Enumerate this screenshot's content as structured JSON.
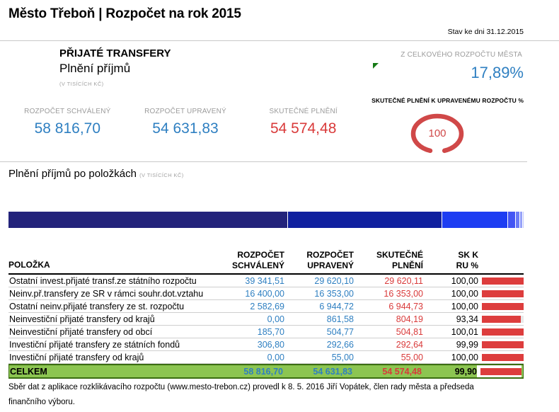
{
  "header": {
    "title": "Město Třeboň | Rozpočet na rok 2015",
    "status_date": "Stav ke dni 31.12.2015"
  },
  "summary": {
    "section_title": "PŘIJATÉ TRANSFERY",
    "subtitle": "Plnění příjmů",
    "unit_note": "(V TISÍCÍCH KČ)",
    "share_label": "Z CELKOVÉHO ROZPOČTU MĚSTA",
    "share_value": "17,89%",
    "share_value_color": "#2e7fc1",
    "flag_icon_color": "#157a15",
    "metrics": [
      {
        "label": "ROZPOČET SCHVÁLENÝ",
        "value": "58 816,70",
        "color": "#2e7fc1"
      },
      {
        "label": "ROZPOČET UPRAVENÝ",
        "value": "54 631,83",
        "color": "#2e7fc1"
      },
      {
        "label": "SKUTEČNÉ PLNĚNÍ",
        "value": "54 574,48",
        "color": "#d93a3a"
      }
    ],
    "gauge": {
      "label": "SKUTEČNÉ PLNĚNÍ K UPRAVENÉMU ROZPOČTU %",
      "value": "100",
      "color": "#d04848"
    }
  },
  "items_section": {
    "title": "Plnění příjmů po položkách",
    "unit_note": "(V TISÍCÍCH KČ)"
  },
  "chart_data": [
    {
      "type": "gauge",
      "title": "SKUTEČNÉ PLNĚNÍ K UPRAVENÉMU ROZPOČTU %",
      "value": 100,
      "unit": "%",
      "color": "#d04848"
    },
    {
      "type": "bar",
      "orientation": "horizontal",
      "stacked": true,
      "title": "Plnění příjmů po položkách (V TISÍCÍCH KČ)",
      "categories": [
        "Ostatní invest.přijaté transf.ze státního rozpočtu",
        "Neinv.př.transfery ze SR v rámci souhr.dot.vztahu",
        "Ostatní neinv.přijaté transfery ze st. rozpočtu",
        "Neinvestiční přijaté transfery od krajů",
        "Neinvestiční přijaté transfery od obcí",
        "Investiční přijaté transfery ze státních fondů",
        "Investiční přijaté transfery od krajů"
      ],
      "values": [
        29620.11,
        16353.0,
        6944.73,
        804.19,
        504.81,
        292.64,
        55.0
      ],
      "total": 54574.48,
      "colors": [
        "#23237b",
        "#10209f",
        "#1d3df2",
        "#4355f4",
        "#6b7af7",
        "#94a0f9",
        "#c0c7fc"
      ]
    }
  ],
  "table": {
    "headers": {
      "item": "POLOŽKA",
      "approved": "ROZPOČET\nSCHVÁLENÝ",
      "adjusted": "ROZPOČET\nUPRAVENÝ",
      "actual": "SKUTEČNÉ\nPLNĚNÍ",
      "ratio": "SK K\nRU %"
    },
    "bar_color": "#dd3d3d",
    "rows": [
      {
        "label": "Ostatní invest.přijaté transf.ze státního rozpočtu",
        "approved": "39 341,51",
        "adjusted": "29 620,10",
        "actual": "29 620,11",
        "pct": "100,00",
        "pct_num": 100.0
      },
      {
        "label": "Neinv.př.transfery ze SR v rámci souhr.dot.vztahu",
        "approved": "16 400,00",
        "adjusted": "16 353,00",
        "actual": "16 353,00",
        "pct": "100,00",
        "pct_num": 100.0
      },
      {
        "label": "Ostatní neinv.přijaté transfery ze st. rozpočtu",
        "approved": "2 582,69",
        "adjusted": "6 944,72",
        "actual": "6 944,73",
        "pct": "100,00",
        "pct_num": 100.0
      },
      {
        "label": "Neinvestiční přijaté transfery od krajů",
        "approved": "0,00",
        "adjusted": "861,58",
        "actual": "804,19",
        "pct": "93,34",
        "pct_num": 93.34
      },
      {
        "label": "Neinvestiční přijaté transfery od obcí",
        "approved": "185,70",
        "adjusted": "504,77",
        "actual": "504,81",
        "pct": "100,01",
        "pct_num": 100.01
      },
      {
        "label": "Investiční přijaté transfery ze státních fondů",
        "approved": "306,80",
        "adjusted": "292,66",
        "actual": "292,64",
        "pct": "99,99",
        "pct_num": 99.99
      },
      {
        "label": "Investiční přijaté transfery od krajů",
        "approved": "0,00",
        "adjusted": "55,00",
        "actual": "55,00",
        "pct": "100,00",
        "pct_num": 100.0
      }
    ],
    "total": {
      "label": "CELKEM",
      "approved": "58 816,70",
      "adjusted": "54 631,83",
      "actual": "54 574,48",
      "pct": "99,90",
      "pct_num": 99.9
    }
  },
  "footer": {
    "note": "Sběr dat z aplikace rozklikávacího rozpočtu (www.mesto-trebon.cz) provedl k 8. 5. 2016 Jiří Vopátek, člen rady města a předseda finančního výboru."
  }
}
